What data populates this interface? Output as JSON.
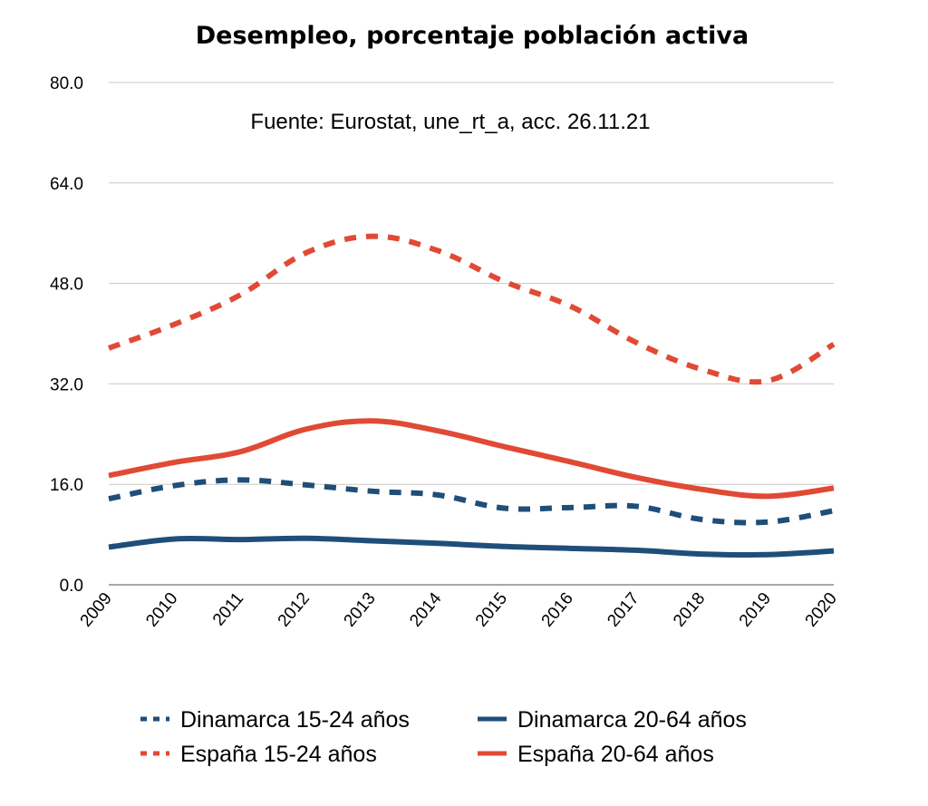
{
  "chart_data": {
    "type": "line",
    "title": "Desempleo, porcentaje población activa",
    "subtitle": "Fuente: Eurostat, une_rt_a, acc. 26.11.21",
    "xlabel": "",
    "ylabel": "",
    "ylim": [
      0,
      80
    ],
    "yticks": [
      "0.0",
      "16.0",
      "32.0",
      "48.0",
      "64.0",
      "80.0"
    ],
    "grid": true,
    "legend_position": "bottom",
    "categories": [
      "2009",
      "2010",
      "2011",
      "2012",
      "2013",
      "2014",
      "2015",
      "2016",
      "2017",
      "2018",
      "2019",
      "2020"
    ],
    "series": [
      {
        "name": "Dinamarca 15-24 años",
        "color": "#1f4e79",
        "style": "dashed",
        "values": [
          13.7,
          15.8,
          16.7,
          15.9,
          14.9,
          14.3,
          12.2,
          12.3,
          12.5,
          10.4,
          10.0,
          11.8
        ]
      },
      {
        "name": "Dinamarca 20-64 años",
        "color": "#1f4e79",
        "style": "solid",
        "values": [
          6.0,
          7.3,
          7.2,
          7.4,
          7.0,
          6.6,
          6.1,
          5.8,
          5.5,
          4.9,
          4.8,
          5.4
        ]
      },
      {
        "name": "España 15-24 años",
        "color": "#e04a35",
        "style": "dashed",
        "values": [
          37.7,
          41.5,
          46.2,
          52.9,
          55.5,
          53.2,
          48.3,
          44.4,
          38.6,
          34.3,
          32.5,
          38.3
        ]
      },
      {
        "name": "España 20-64 años",
        "color": "#e04a35",
        "style": "solid",
        "values": [
          17.4,
          19.5,
          21.2,
          24.8,
          26.1,
          24.5,
          22.0,
          19.6,
          17.1,
          15.2,
          14.1,
          15.4
        ]
      }
    ]
  }
}
